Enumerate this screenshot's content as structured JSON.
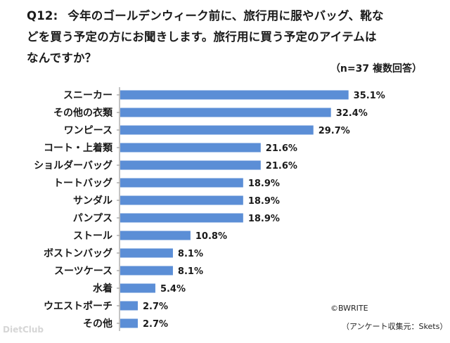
{
  "question": {
    "number": "Q12:",
    "line1": "今年のゴールデンウィーク前に、旅行用に服やバッグ、靴な",
    "line2": "どを買う予定の方にお聞きします。旅行用に買う予定のアイテムは",
    "line3": "なんですか？"
  },
  "sample_note": "（n=37 複数回答）",
  "copyright": "©BWRITE",
  "source": "（アンケート収集元：Skets）",
  "watermark": "DietClub",
  "colors": {
    "bar": "#5b8ed6",
    "axis": "#888888"
  },
  "chart_data": {
    "type": "bar",
    "orientation": "horizontal",
    "title": "旅行用に買う予定のアイテム",
    "categories": [
      "スニーカー",
      "その他の衣類",
      "ワンピース",
      "コート・上着類",
      "ショルダーバッグ",
      "トートバッグ",
      "サンダル",
      "パンプス",
      "ストール",
      "ボストンバッグ",
      "スーツケース",
      "水着",
      "ウエストポーチ",
      "その他"
    ],
    "values": [
      35.1,
      32.4,
      29.7,
      21.6,
      21.6,
      18.9,
      18.9,
      18.9,
      10.8,
      8.1,
      8.1,
      5.4,
      2.7,
      2.7
    ],
    "labels": [
      "35.1%",
      "32.4%",
      "29.7%",
      "21.6%",
      "21.6%",
      "18.9%",
      "18.9%",
      "18.9%",
      "10.8%",
      "8.1%",
      "8.1%",
      "5.4%",
      "2.7%",
      "2.7%"
    ],
    "unit": "%",
    "xlim": [
      0,
      40
    ],
    "grid": false,
    "legend": "none"
  }
}
